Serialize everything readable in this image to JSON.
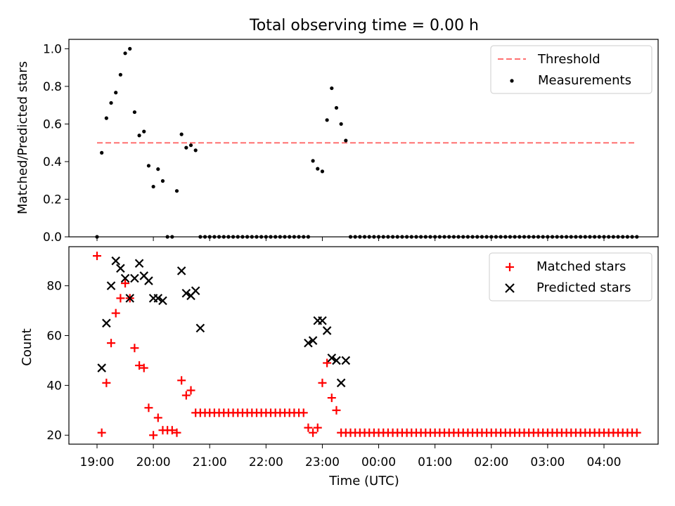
{
  "title": "Total observing time = 0.00 h",
  "chart_data": [
    {
      "type": "scatter",
      "ylabel": "Matched/Predicted stars",
      "ylim": [
        0,
        1.05
      ],
      "yticks": [
        0.0,
        0.2,
        0.4,
        0.6,
        0.8,
        1.0
      ],
      "ytick_labels": [
        "0.0",
        "0.2",
        "0.4",
        "0.6",
        "0.8",
        "1.0"
      ],
      "legend_position": "top-right",
      "threshold": {
        "name": "Threshold",
        "value": 0.5,
        "color": "#ff7070"
      },
      "series": [
        {
          "name": "Measurements",
          "color": "#000000",
          "x": [
            "19:00",
            "19:05",
            "19:10",
            "19:15",
            "19:20",
            "19:25",
            "19:30",
            "19:35",
            "19:40",
            "19:45",
            "19:50",
            "19:55",
            "20:00",
            "20:05",
            "20:10",
            "20:15",
            "20:20",
            "20:25",
            "20:30",
            "20:35",
            "20:40",
            "20:45",
            "20:50",
            "20:55",
            "21:00",
            "21:05",
            "21:10",
            "21:15",
            "21:20",
            "21:25",
            "21:30",
            "21:35",
            "21:40",
            "21:45",
            "21:50",
            "21:55",
            "22:00",
            "22:05",
            "22:10",
            "22:15",
            "22:20",
            "22:25",
            "22:30",
            "22:35",
            "22:40",
            "22:45",
            "22:50",
            "22:55",
            "23:00",
            "23:05",
            "23:10",
            "23:15",
            "23:20",
            "23:25",
            "23:30",
            "23:35",
            "23:40",
            "23:45",
            "23:50",
            "23:55",
            "00:00",
            "00:05",
            "00:10",
            "00:15",
            "00:20",
            "00:25",
            "00:30",
            "00:35",
            "00:40",
            "00:45",
            "00:50",
            "00:55",
            "01:00",
            "01:05",
            "01:10",
            "01:15",
            "01:20",
            "01:25",
            "01:30",
            "01:35",
            "01:40",
            "01:45",
            "01:50",
            "01:55",
            "02:00",
            "02:05",
            "02:10",
            "02:15",
            "02:20",
            "02:25",
            "02:30",
            "02:35",
            "02:40",
            "02:45",
            "02:50",
            "02:55",
            "03:00",
            "03:05",
            "03:10",
            "03:15",
            "03:20",
            "03:25",
            "03:30",
            "03:35",
            "03:40",
            "03:45",
            "03:50",
            "03:55",
            "04:00",
            "04:05",
            "04:10",
            "04:15",
            "04:20",
            "04:25",
            "04:30",
            "04:35"
          ],
          "y": [
            0.0,
            0.447,
            0.631,
            0.712,
            0.767,
            0.862,
            0.976,
            1.0,
            0.663,
            0.539,
            0.56,
            0.378,
            0.267,
            0.36,
            0.297,
            0.0,
            0.0,
            0.244,
            0.545,
            0.474,
            0.487,
            0.46,
            0.0,
            0.0,
            0.0,
            0.0,
            0.0,
            0.0,
            0.0,
            0.0,
            0.0,
            0.0,
            0.0,
            0.0,
            0.0,
            0.0,
            0.0,
            0.0,
            0.0,
            0.0,
            0.0,
            0.0,
            0.0,
            0.0,
            0.0,
            0.0,
            0.404,
            0.362,
            0.348,
            0.621,
            0.79,
            0.686,
            0.6,
            0.512,
            0.0,
            0.0,
            0.0,
            0.0,
            0.0,
            0.0,
            0.0,
            0.0,
            0.0,
            0.0,
            0.0,
            0.0,
            0.0,
            0.0,
            0.0,
            0.0,
            0.0,
            0.0,
            0.0,
            0.0,
            0.0,
            0.0,
            0.0,
            0.0,
            0.0,
            0.0,
            0.0,
            0.0,
            0.0,
            0.0,
            0.0,
            0.0,
            0.0,
            0.0,
            0.0,
            0.0,
            0.0,
            0.0,
            0.0,
            0.0,
            0.0,
            0.0,
            0.0,
            0.0,
            0.0,
            0.0,
            0.0,
            0.0,
            0.0,
            0.0,
            0.0,
            0.0,
            0.0,
            0.0,
            0.0,
            0.0,
            0.0,
            0.0,
            0.0,
            0.0,
            0.0,
            0.0
          ]
        }
      ]
    },
    {
      "type": "scatter",
      "xlabel": "Time (UTC)",
      "ylabel": "Count",
      "ylim": [
        16.4,
        95.7
      ],
      "yticks": [
        20,
        40,
        60,
        80
      ],
      "ytick_labels": [
        "20",
        "40",
        "60",
        "80"
      ],
      "xtick_labels": [
        "19:00",
        "20:00",
        "21:00",
        "22:00",
        "23:00",
        "00:00",
        "01:00",
        "02:00",
        "03:00",
        "04:00"
      ],
      "legend_position": "top-right",
      "series": [
        {
          "name": "Matched stars",
          "marker": "+",
          "color": "#ff0000",
          "x": [
            "19:00",
            "19:05",
            "19:10",
            "19:15",
            "19:20",
            "19:25",
            "19:30",
            "19:35",
            "19:40",
            "19:45",
            "19:50",
            "19:55",
            "20:00",
            "20:05",
            "20:10",
            "20:15",
            "20:20",
            "20:25",
            "20:30",
            "20:35",
            "20:40",
            "20:45",
            "20:50",
            "20:55",
            "21:00",
            "21:05",
            "21:10",
            "21:15",
            "21:20",
            "21:25",
            "21:30",
            "21:35",
            "21:40",
            "21:45",
            "21:50",
            "21:55",
            "22:00",
            "22:05",
            "22:10",
            "22:15",
            "22:20",
            "22:25",
            "22:30",
            "22:35",
            "22:40",
            "22:45",
            "22:50",
            "22:55",
            "23:00",
            "23:05",
            "23:10",
            "23:15",
            "23:20",
            "23:25",
            "23:30",
            "23:35",
            "23:40",
            "23:45",
            "23:50",
            "23:55",
            "00:00",
            "00:05",
            "00:10",
            "00:15",
            "00:20",
            "00:25",
            "00:30",
            "00:35",
            "00:40",
            "00:45",
            "00:50",
            "00:55",
            "01:00",
            "01:05",
            "01:10",
            "01:15",
            "01:20",
            "01:25",
            "01:30",
            "01:35",
            "01:40",
            "01:45",
            "01:50",
            "01:55",
            "02:00",
            "02:05",
            "02:10",
            "02:15",
            "02:20",
            "02:25",
            "02:30",
            "02:35",
            "02:40",
            "02:45",
            "02:50",
            "02:55",
            "03:00",
            "03:05",
            "03:10",
            "03:15",
            "03:20",
            "03:25",
            "03:30",
            "03:35",
            "03:40",
            "03:45",
            "03:50",
            "03:55",
            "04:00",
            "04:05",
            "04:10",
            "04:15",
            "04:20",
            "04:25",
            "04:30",
            "04:35"
          ],
          "y": [
            92,
            21,
            41,
            57,
            69,
            75,
            81,
            75,
            55,
            48,
            47,
            31,
            20,
            27,
            22,
            22,
            22,
            21,
            42,
            36,
            38,
            29,
            29,
            29,
            29,
            29,
            29,
            29,
            29,
            29,
            29,
            29,
            29,
            29,
            29,
            29,
            29,
            29,
            29,
            29,
            29,
            29,
            29,
            29,
            29,
            23,
            21,
            23,
            41,
            49,
            35,
            30,
            21,
            21,
            21,
            21,
            21,
            21,
            21,
            21,
            21,
            21,
            21,
            21,
            21,
            21,
            21,
            21,
            21,
            21,
            21,
            21,
            21,
            21,
            21,
            21,
            21,
            21,
            21,
            21,
            21,
            21,
            21,
            21,
            21,
            21,
            21,
            21,
            21,
            21,
            21,
            21,
            21,
            21,
            21,
            21,
            21,
            21,
            21,
            21,
            21,
            21,
            21,
            21,
            21,
            21,
            21,
            21,
            21,
            21,
            21,
            21,
            21,
            21,
            21,
            21
          ]
        },
        {
          "name": "Predicted stars",
          "marker": "x",
          "color": "#000000",
          "x": [
            "19:05",
            "19:10",
            "19:15",
            "19:20",
            "19:25",
            "19:30",
            "19:35",
            "19:40",
            "19:45",
            "19:50",
            "19:55",
            "20:00",
            "20:05",
            "20:10",
            "20:30",
            "20:35",
            "20:40",
            "20:45",
            "20:50",
            "22:45",
            "22:50",
            "22:55",
            "23:00",
            "23:05",
            "23:10",
            "23:15",
            "23:20",
            "23:25"
          ],
          "y": [
            47,
            65,
            80,
            90,
            87,
            83,
            75,
            83,
            89,
            84,
            82,
            75,
            75,
            74,
            86,
            77,
            76,
            78,
            63,
            57,
            58,
            66,
            66,
            62,
            51,
            50,
            41,
            50
          ]
        }
      ]
    }
  ]
}
